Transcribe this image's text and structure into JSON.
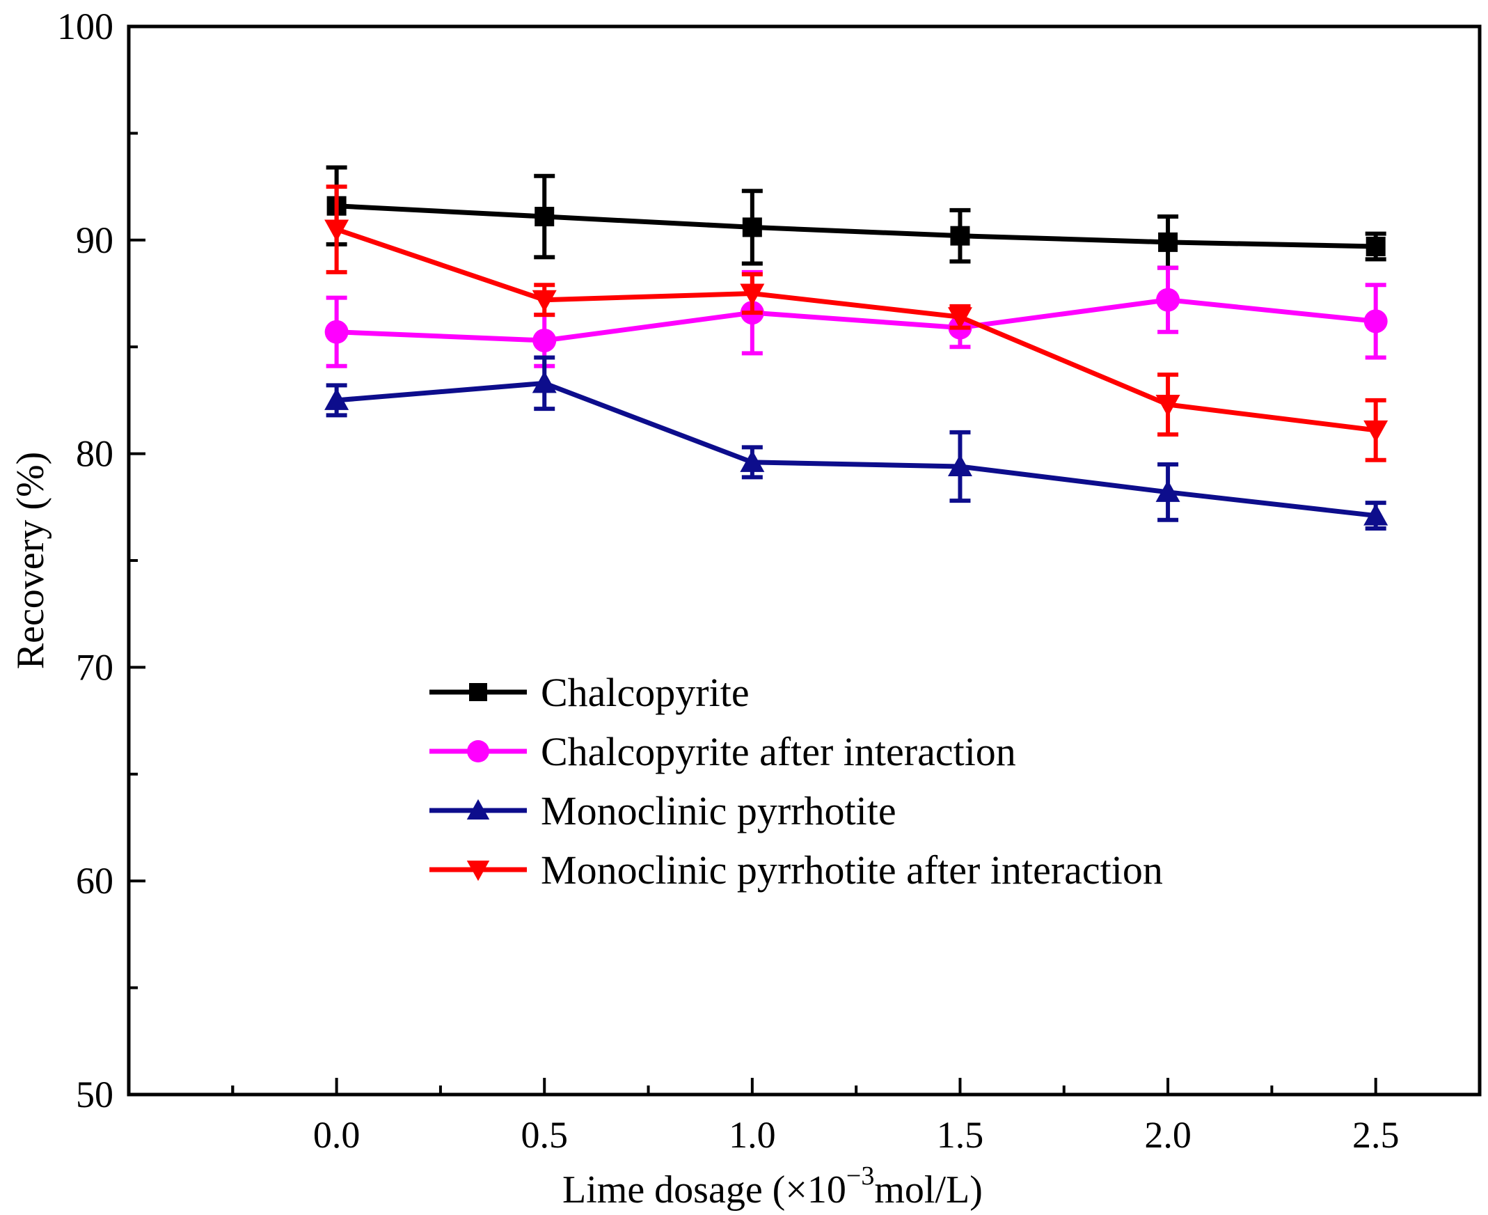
{
  "chart_data": {
    "type": "line",
    "title": "",
    "xlabel": "Lime dosage (×10",
    "xlabel_sup": "−3",
    "xlabel_suffix": "mol/L)",
    "ylabel": "Recovery (%)",
    "xlim": [
      -0.5,
      2.75
    ],
    "ylim": [
      50,
      100
    ],
    "x": [
      0.0,
      0.5,
      1.0,
      1.5,
      2.0,
      2.5
    ],
    "x_tick_labels": [
      "0.0",
      "0.5",
      "1.0",
      "1.5",
      "2.0",
      "2.5"
    ],
    "y_ticks": [
      50,
      60,
      70,
      80,
      90,
      100
    ],
    "y_tick_labels": [
      "50",
      "60",
      "70",
      "80",
      "90",
      "100"
    ],
    "legend_position": "center-left",
    "series": [
      {
        "name": "Chalcopyrite",
        "color": "#000000",
        "marker": "square",
        "values": [
          91.6,
          91.1,
          90.6,
          90.2,
          89.9,
          89.7
        ],
        "errors": [
          1.8,
          1.9,
          1.7,
          1.2,
          1.2,
          0.6
        ]
      },
      {
        "name": "Chalcopyrite after interaction",
        "color": "#ff00ff",
        "marker": "circle",
        "values": [
          85.7,
          85.3,
          86.6,
          85.9,
          87.2,
          86.2
        ],
        "errors": [
          1.6,
          1.2,
          1.9,
          0.9,
          1.5,
          1.7
        ]
      },
      {
        "name": "Monoclinic pyrrhotite",
        "color": "#0d0d8c",
        "marker": "triangle-up",
        "values": [
          82.5,
          83.3,
          79.6,
          79.4,
          78.2,
          77.1
        ],
        "errors": [
          0.7,
          1.2,
          0.7,
          1.6,
          1.3,
          0.6
        ]
      },
      {
        "name": "Monoclinic pyrrhotite after interaction",
        "color": "#ff0000",
        "marker": "triangle-down",
        "values": [
          90.5,
          87.2,
          87.5,
          86.4,
          82.3,
          81.1
        ],
        "errors": [
          2.0,
          0.7,
          0.9,
          0.5,
          1.4,
          1.4
        ]
      }
    ]
  }
}
